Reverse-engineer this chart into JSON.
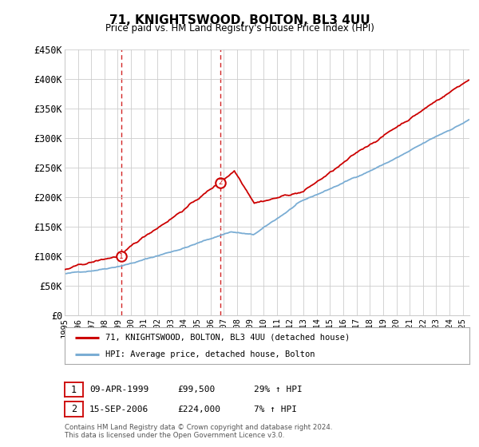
{
  "title": "71, KNIGHTSWOOD, BOLTON, BL3 4UU",
  "subtitle": "Price paid vs. HM Land Registry's House Price Index (HPI)",
  "ylabel_ticks": [
    0,
    50000,
    100000,
    150000,
    200000,
    250000,
    300000,
    350000,
    400000,
    450000
  ],
  "ylabel_labels": [
    "£0",
    "£50K",
    "£100K",
    "£150K",
    "£200K",
    "£250K",
    "£300K",
    "£350K",
    "£400K",
    "£450K"
  ],
  "ylim": [
    0,
    450000
  ],
  "xlim_start": 1995.0,
  "xlim_end": 2025.5,
  "point1_x": 1999.27,
  "point1_y": 99500,
  "point2_x": 2006.71,
  "point2_y": 224000,
  "vline1_x": 1999.27,
  "vline2_x": 2006.71,
  "vline_color": "#cc0000",
  "red_line_color": "#cc0000",
  "blue_line_color": "#7aadd4",
  "legend1_label": "71, KNIGHTSWOOD, BOLTON, BL3 4UU (detached house)",
  "legend2_label": "HPI: Average price, detached house, Bolton",
  "table_row1": [
    "1",
    "09-APR-1999",
    "£99,500",
    "29% ↑ HPI"
  ],
  "table_row2": [
    "2",
    "15-SEP-2006",
    "£224,000",
    "7% ↑ HPI"
  ],
  "footer": "Contains HM Land Registry data © Crown copyright and database right 2024.\nThis data is licensed under the Open Government Licence v3.0.",
  "bg_color": "#ffffff",
  "grid_color": "#cccccc",
  "xtick_years": [
    1995,
    1996,
    1997,
    1998,
    1999,
    2000,
    2001,
    2002,
    2003,
    2004,
    2005,
    2006,
    2007,
    2008,
    2009,
    2010,
    2011,
    2012,
    2013,
    2014,
    2015,
    2016,
    2017,
    2018,
    2019,
    2020,
    2021,
    2022,
    2023,
    2024,
    2025
  ]
}
